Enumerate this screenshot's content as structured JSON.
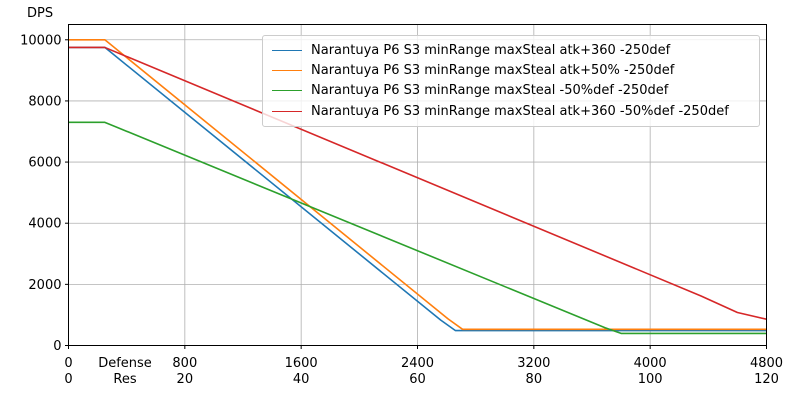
{
  "chart_data": {
    "type": "line",
    "title": "",
    "ylabel": "DPS",
    "xlabel": "",
    "xlim": [
      0,
      4800
    ],
    "ylim": [
      0,
      10500
    ],
    "grid": true,
    "legend_position": "upper right",
    "grid_color": "#b0b0b0",
    "y_ticks": [
      0,
      2000,
      4000,
      6000,
      8000,
      10000
    ],
    "x_axis": {
      "primary_name": "Defense",
      "secondary_name": "Res",
      "primary_ticks": [
        0,
        800,
        1600,
        2400,
        3200,
        4000,
        4800
      ],
      "secondary_ticks": [
        0,
        20,
        40,
        60,
        80,
        100,
        120
      ]
    },
    "series": [
      {
        "name": "Narantuya P6 S3 minRange maxSteal atk+360 -250def",
        "color": "#1f77b4",
        "points": [
          [
            0,
            9750
          ],
          [
            250,
            9750
          ],
          [
            2560,
            830
          ],
          [
            2660,
            490
          ],
          [
            4800,
            490
          ]
        ]
      },
      {
        "name": "Narantuya P6 S3 minRange maxSteal atk+50% -250def",
        "color": "#ff7f0e",
        "points": [
          [
            0,
            10000
          ],
          [
            250,
            10000
          ],
          [
            2610,
            870
          ],
          [
            2710,
            530
          ],
          [
            4800,
            530
          ]
        ]
      },
      {
        "name": "Narantuya P6 S3 minRange maxSteal -50%def -250def",
        "color": "#2ca02c",
        "points": [
          [
            0,
            7300
          ],
          [
            250,
            7300
          ],
          [
            3690,
            580
          ],
          [
            3800,
            395
          ],
          [
            4800,
            395
          ]
        ]
      },
      {
        "name": "Narantuya P6 S3 minRange maxSteal atk+360 -50%def -250def",
        "color": "#d62728",
        "points": [
          [
            0,
            9750
          ],
          [
            250,
            9750
          ],
          [
            4350,
            1620
          ],
          [
            4600,
            1080
          ],
          [
            4800,
            860
          ]
        ]
      }
    ]
  }
}
